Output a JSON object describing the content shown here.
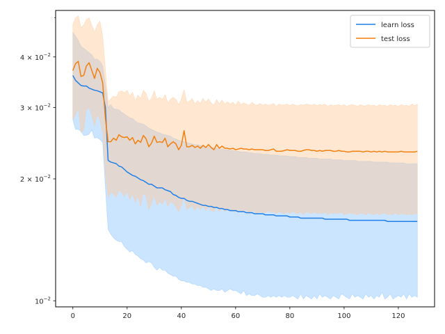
{
  "chart_data": {
    "type": "line",
    "title": "",
    "xlabel": "",
    "ylabel": "",
    "y_scale": "log",
    "xlim": [
      -6.35,
      133.35
    ],
    "ylim": [
      0.00966,
      0.0521
    ],
    "x_ticks": [
      0,
      20,
      40,
      60,
      80,
      100,
      120
    ],
    "x_tick_labels": [
      "0",
      "20",
      "40",
      "60",
      "80",
      "100",
      "120"
    ],
    "y_ticks": [
      0.01,
      0.02,
      0.03,
      0.04
    ],
    "y_tick_labels": [
      {
        "base": "10",
        "exp": "−2"
      },
      {
        "base": "2 × 10",
        "exp": "−2"
      },
      {
        "base": "3 × 10",
        "exp": "−2"
      },
      {
        "base": "4 × 10",
        "exp": "−2"
      }
    ],
    "grid": false,
    "legend_position": "top-right",
    "series": [
      {
        "name": "learn loss",
        "color": "#1f7fe6",
        "band_color": "#8cc4ff",
        "x_start": 0,
        "values": [
          0.036,
          0.035,
          0.0345,
          0.034,
          0.0339,
          0.0339,
          0.0335,
          0.0333,
          0.0331,
          0.033,
          0.0328,
          0.0326,
          0.03,
          0.0222,
          0.022,
          0.0219,
          0.0218,
          0.0215,
          0.0214,
          0.0211,
          0.0208,
          0.0206,
          0.0204,
          0.0203,
          0.0201,
          0.0199,
          0.0198,
          0.0196,
          0.0194,
          0.0194,
          0.0192,
          0.019,
          0.019,
          0.019,
          0.0188,
          0.0187,
          0.0186,
          0.0183,
          0.0182,
          0.018,
          0.0179,
          0.0179,
          0.0177,
          0.0176,
          0.0176,
          0.0175,
          0.0174,
          0.0173,
          0.0172,
          0.0172,
          0.0171,
          0.0171,
          0.017,
          0.017,
          0.0169,
          0.0169,
          0.0168,
          0.0168,
          0.0167,
          0.0167,
          0.0167,
          0.0166,
          0.0166,
          0.0166,
          0.0165,
          0.0165,
          0.0165,
          0.0164,
          0.0164,
          0.0164,
          0.0164,
          0.0163,
          0.0163,
          0.0163,
          0.0163,
          0.0162,
          0.0162,
          0.0162,
          0.0162,
          0.0162,
          0.0161,
          0.0161,
          0.0161,
          0.0161,
          0.016,
          0.016,
          0.016,
          0.016,
          0.016,
          0.016,
          0.016,
          0.016,
          0.016,
          0.0159,
          0.0159,
          0.0159,
          0.0159,
          0.0159,
          0.0159,
          0.0159,
          0.0159,
          0.0159,
          0.0158,
          0.0158,
          0.0158,
          0.0158,
          0.0158,
          0.0158,
          0.0158,
          0.0158,
          0.0158,
          0.0158,
          0.0158,
          0.0158,
          0.0158,
          0.0158,
          0.0157,
          0.0157,
          0.0157,
          0.0157,
          0.0157,
          0.0157,
          0.0157,
          0.0157,
          0.0157,
          0.0157,
          0.0157,
          0.0157
        ],
        "lower": [
          0.028,
          0.0265,
          0.0265,
          0.0262,
          0.0256,
          0.0256,
          0.0258,
          0.0264,
          0.0252,
          0.0253,
          0.025,
          0.0246,
          0.019,
          0.015,
          0.0146,
          0.0143,
          0.0141,
          0.014,
          0.014,
          0.0136,
          0.0134,
          0.0132,
          0.0133,
          0.013,
          0.0129,
          0.0127,
          0.0126,
          0.0124,
          0.0125,
          0.0124,
          0.0121,
          0.0119,
          0.0121,
          0.0119,
          0.0119,
          0.0117,
          0.0116,
          0.0115,
          0.0115,
          0.0113,
          0.0112,
          0.0112,
          0.0111,
          0.0111,
          0.011,
          0.011,
          0.0109,
          0.0109,
          0.0108,
          0.0108,
          0.0107,
          0.0106,
          0.0107,
          0.0106,
          0.0106,
          0.0107,
          0.0105,
          0.0106,
          0.0107,
          0.0106,
          0.0106,
          0.0105,
          0.0104,
          0.0106,
          0.0103,
          0.0104,
          0.0103,
          0.0103,
          0.0104,
          0.0103,
          0.0102,
          0.0102,
          0.0103,
          0.0102,
          0.0103,
          0.0102,
          0.0103,
          0.0102,
          0.0103,
          0.0102,
          0.0102,
          0.0103,
          0.0102,
          0.0101,
          0.0104,
          0.0101,
          0.0103,
          0.0102,
          0.0101,
          0.0103,
          0.0101,
          0.0104,
          0.0102,
          0.0103,
          0.0102,
          0.0101,
          0.0103,
          0.0102,
          0.0101,
          0.0104,
          0.0103,
          0.0102,
          0.0101,
          0.0104,
          0.0102,
          0.0103,
          0.0102,
          0.0101,
          0.0104,
          0.0102,
          0.0103,
          0.0101,
          0.0103,
          0.0102,
          0.0105,
          0.0101,
          0.0102,
          0.0104,
          0.0101,
          0.0102,
          0.0103,
          0.0102,
          0.0104,
          0.0101,
          0.0104,
          0.0102,
          0.0103,
          0.0102
        ],
        "upper": [
          0.046,
          0.045,
          0.044,
          0.0425,
          0.042,
          0.0415,
          0.041,
          0.0405,
          0.0395,
          0.0395,
          0.039,
          0.038,
          0.034,
          0.03,
          0.0305,
          0.0298,
          0.0297,
          0.0296,
          0.0292,
          0.0289,
          0.0286,
          0.0283,
          0.0282,
          0.0278,
          0.0275,
          0.0274,
          0.0273,
          0.027,
          0.0267,
          0.0265,
          0.0263,
          0.0261,
          0.026,
          0.0258,
          0.0257,
          0.0256,
          0.0255,
          0.0252,
          0.0251,
          0.0249,
          0.0248,
          0.0247,
          0.0246,
          0.0245,
          0.0244,
          0.0243,
          0.0243,
          0.0242,
          0.0241,
          0.024,
          0.024,
          0.0239,
          0.0239,
          0.0238,
          0.0237,
          0.0237,
          0.0236,
          0.0236,
          0.0235,
          0.0235,
          0.0234,
          0.0234,
          0.0233,
          0.0233,
          0.0233,
          0.0232,
          0.0232,
          0.0231,
          0.0231,
          0.0231,
          0.023,
          0.023,
          0.023,
          0.0229,
          0.0229,
          0.0229,
          0.0228,
          0.0228,
          0.0228,
          0.0228,
          0.0227,
          0.0227,
          0.0227,
          0.0226,
          0.0226,
          0.0226,
          0.0226,
          0.0225,
          0.0225,
          0.0225,
          0.0225,
          0.0224,
          0.0224,
          0.0224,
          0.0224,
          0.0224,
          0.0223,
          0.0223,
          0.0223,
          0.0223,
          0.0222,
          0.0222,
          0.0222,
          0.0222,
          0.0222,
          0.0221,
          0.0221,
          0.0221,
          0.0221,
          0.0221,
          0.0221,
          0.022,
          0.022,
          0.022,
          0.022,
          0.022,
          0.022,
          0.0219,
          0.0219,
          0.0219,
          0.0219,
          0.0219,
          0.0219,
          0.0218,
          0.0218,
          0.0218,
          0.0218,
          0.0218
        ]
      },
      {
        "name": "test loss",
        "color": "#f27f0c",
        "band_color": "#ffc99a",
        "x_start": 0,
        "values": [
          0.037,
          0.0385,
          0.039,
          0.0358,
          0.036,
          0.038,
          0.0387,
          0.037,
          0.0354,
          0.0375,
          0.0366,
          0.0345,
          0.0282,
          0.0247,
          0.0247,
          0.0252,
          0.0249,
          0.0257,
          0.0254,
          0.0253,
          0.0254,
          0.0249,
          0.0253,
          0.0244,
          0.0249,
          0.0246,
          0.0256,
          0.0251,
          0.024,
          0.0245,
          0.0255,
          0.0246,
          0.0247,
          0.0246,
          0.0252,
          0.024,
          0.0244,
          0.0247,
          0.0244,
          0.0236,
          0.0242,
          0.0263,
          0.024,
          0.024,
          0.0242,
          0.0239,
          0.0241,
          0.0238,
          0.0242,
          0.0239,
          0.0243,
          0.0239,
          0.0236,
          0.0243,
          0.0238,
          0.0241,
          0.0238,
          0.0238,
          0.0237,
          0.0238,
          0.0236,
          0.0237,
          0.0238,
          0.0237,
          0.0237,
          0.0236,
          0.0237,
          0.0236,
          0.0236,
          0.0236,
          0.0236,
          0.0235,
          0.0235,
          0.0236,
          0.0237,
          0.0234,
          0.0234,
          0.0234,
          0.0235,
          0.0236,
          0.0235,
          0.0235,
          0.0235,
          0.0234,
          0.0234,
          0.0235,
          0.0236,
          0.0236,
          0.0235,
          0.0235,
          0.0234,
          0.0235,
          0.0234,
          0.0235,
          0.0235,
          0.0235,
          0.0234,
          0.0234,
          0.0235,
          0.0234,
          0.0234,
          0.0233,
          0.0233,
          0.0234,
          0.0234,
          0.0234,
          0.0234,
          0.0233,
          0.0234,
          0.0234,
          0.0233,
          0.0234,
          0.0233,
          0.0234,
          0.0233,
          0.0234,
          0.0233,
          0.0233,
          0.0233,
          0.0233,
          0.0233,
          0.0234,
          0.0233,
          0.0233,
          0.0233,
          0.0233,
          0.0233,
          0.0234
        ],
        "lower": [
          0.028,
          0.0288,
          0.03,
          0.026,
          0.0265,
          0.0296,
          0.03,
          0.0286,
          0.027,
          0.0289,
          0.0279,
          0.026,
          0.0205,
          0.018,
          0.0185,
          0.0184,
          0.018,
          0.0188,
          0.0185,
          0.0181,
          0.0186,
          0.0178,
          0.0184,
          0.0175,
          0.0182,
          0.0171,
          0.0185,
          0.0181,
          0.0168,
          0.0174,
          0.0182,
          0.0172,
          0.0176,
          0.0173,
          0.018,
          0.0171,
          0.0176,
          0.0174,
          0.0171,
          0.0166,
          0.0172,
          0.0181,
          0.0168,
          0.017,
          0.0172,
          0.0167,
          0.0171,
          0.0168,
          0.0172,
          0.0167,
          0.0171,
          0.0167,
          0.0166,
          0.0171,
          0.0166,
          0.017,
          0.0166,
          0.0168,
          0.0167,
          0.0166,
          0.0166,
          0.0168,
          0.0165,
          0.0166,
          0.0168,
          0.0164,
          0.0167,
          0.0166,
          0.0164,
          0.0166,
          0.0165,
          0.0165,
          0.0167,
          0.0165,
          0.0166,
          0.0164,
          0.0166,
          0.0165,
          0.0164,
          0.0166,
          0.0164,
          0.0166,
          0.0165,
          0.0164,
          0.0166,
          0.0163,
          0.0166,
          0.0165,
          0.0164,
          0.0166,
          0.0164,
          0.0165,
          0.0164,
          0.0166,
          0.0163,
          0.0165,
          0.0164,
          0.0165,
          0.0164,
          0.0166,
          0.0163,
          0.0164,
          0.0165,
          0.0164,
          0.0164,
          0.0163,
          0.0165,
          0.0164,
          0.0163,
          0.0165,
          0.0164,
          0.0163,
          0.0165,
          0.0163,
          0.0164,
          0.0165,
          0.0163,
          0.0164,
          0.0163,
          0.0165,
          0.0163,
          0.0164,
          0.0164,
          0.0163,
          0.0164,
          0.0163,
          0.0164,
          0.0164
        ],
        "upper": [
          0.048,
          0.05,
          0.0505,
          0.0472,
          0.048,
          0.0495,
          0.05,
          0.0478,
          0.046,
          0.048,
          0.049,
          0.045,
          0.0372,
          0.031,
          0.0315,
          0.032,
          0.0318,
          0.0328,
          0.033,
          0.0326,
          0.0331,
          0.032,
          0.0327,
          0.0312,
          0.0322,
          0.0316,
          0.0331,
          0.0325,
          0.0311,
          0.0316,
          0.033,
          0.0314,
          0.0318,
          0.0314,
          0.0323,
          0.0308,
          0.0314,
          0.0318,
          0.0314,
          0.0305,
          0.0315,
          0.0332,
          0.0309,
          0.0311,
          0.0316,
          0.0306,
          0.0312,
          0.0307,
          0.0316,
          0.0309,
          0.0315,
          0.0308,
          0.0304,
          0.0314,
          0.0306,
          0.0313,
          0.0306,
          0.031,
          0.0306,
          0.0309,
          0.0304,
          0.0311,
          0.0305,
          0.0308,
          0.0306,
          0.0304,
          0.0309,
          0.0305,
          0.0304,
          0.0307,
          0.0304,
          0.0306,
          0.0304,
          0.0305,
          0.0307,
          0.0302,
          0.0306,
          0.0304,
          0.0305,
          0.0306,
          0.0303,
          0.0306,
          0.0304,
          0.0303,
          0.0305,
          0.0304,
          0.0306,
          0.0305,
          0.0304,
          0.0306,
          0.0303,
          0.0305,
          0.0304,
          0.0306,
          0.0302,
          0.0305,
          0.0303,
          0.0304,
          0.0305,
          0.0303,
          0.0305,
          0.0302,
          0.0304,
          0.0305,
          0.0304,
          0.0302,
          0.0305,
          0.0303,
          0.0303,
          0.0305,
          0.0303,
          0.0304,
          0.0302,
          0.0305,
          0.0303,
          0.0304,
          0.0302,
          0.0305,
          0.0303,
          0.0304,
          0.0302,
          0.0305,
          0.0303,
          0.0304,
          0.0302,
          0.0306,
          0.0303,
          0.0306
        ]
      }
    ]
  }
}
